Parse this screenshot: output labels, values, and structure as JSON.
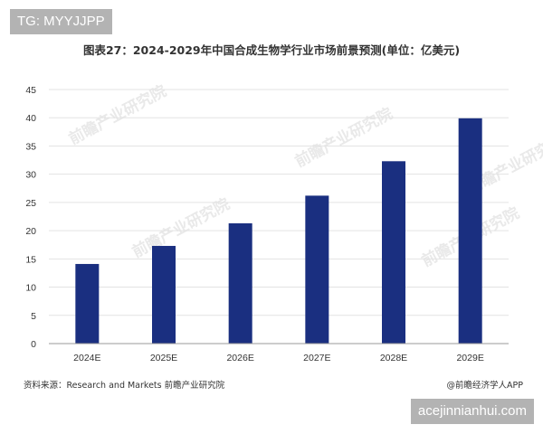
{
  "badges": {
    "top_left": "TG: MYYJJPP",
    "bottom_right": "acejinnianhui.com"
  },
  "footer": {
    "source": "资料来源：Research and Markets 前瞻产业研究院",
    "credit": "@前瞻经济学人APP"
  },
  "watermark": {
    "text": "前瞻产业研究院"
  },
  "colors": {
    "bar": "#1a2f80",
    "grid": "#e3e3e3",
    "axis": "#999999",
    "badge": "#b3b3b3"
  },
  "chart_data": {
    "type": "bar",
    "title": "图表27：2024-2029年中国合成生物学行业市场前景预测(单位：亿美元)",
    "xlabel": "",
    "ylabel": "",
    "categories": [
      "2024E",
      "2025E",
      "2026E",
      "2027E",
      "2028E",
      "2029E"
    ],
    "values": [
      14.1,
      17.3,
      21.3,
      26.2,
      32.3,
      39.9
    ],
    "ylim": [
      0,
      45
    ],
    "yticks": [
      0,
      5,
      10,
      15,
      20,
      25,
      30,
      35,
      40,
      45
    ],
    "grid": true,
    "legend": "none"
  }
}
